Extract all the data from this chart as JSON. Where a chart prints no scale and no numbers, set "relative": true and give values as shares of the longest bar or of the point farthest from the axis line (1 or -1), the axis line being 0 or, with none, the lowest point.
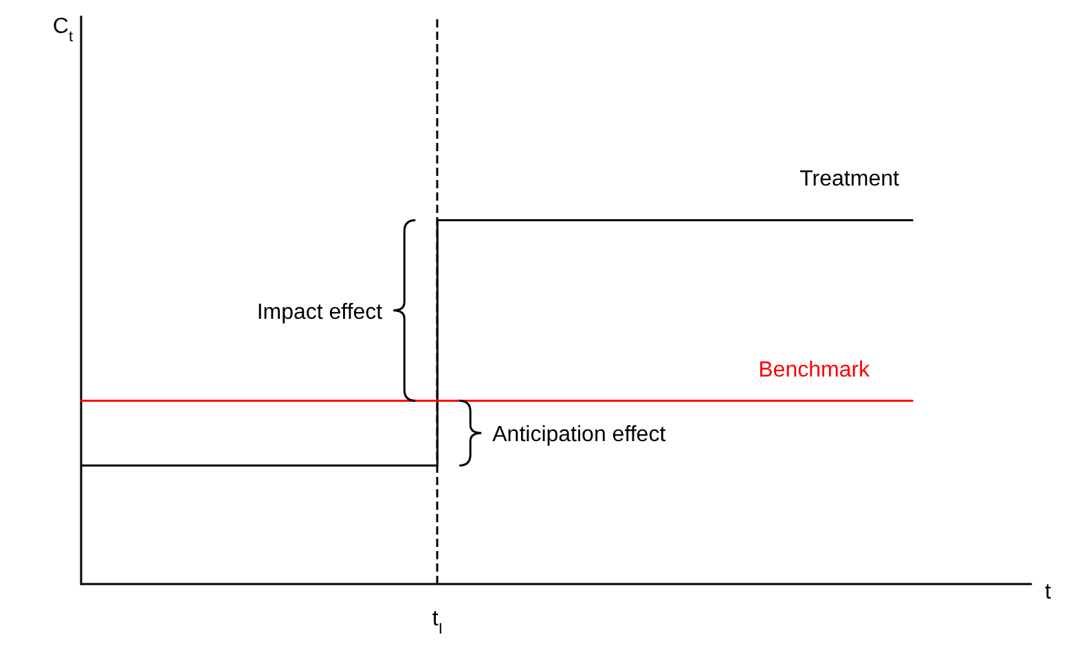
{
  "chart_data": {
    "type": "line",
    "relative": true,
    "xlabel": "t",
    "categories": [
      null,
      null,
      null,
      null,
      null,
      null,
      null,
      null,
      null
    ],
    "tick_labels": false,
    "grid": false,
    "legend": false,
    "marker": "none",
    "line_style": "solid",
    "series": [
      {
        "name": "Treatment",
        "type": "step",
        "color": "#000000",
        "values": [
          0.326,
          0.326,
          0.326,
          0.326,
          1,
          1,
          1,
          1,
          null
        ]
      },
      {
        "name": "Benchmark",
        "color": "#ff0000",
        "values": [
          0.504,
          0.504,
          0.504,
          0.504,
          0.504,
          0.504,
          0.504,
          0.504,
          null
        ]
      }
    ],
    "ref_lines": [
      {
        "axis": "x",
        "label": "t$_{I}$",
        "color": "#000000",
        "line_style": "dashed"
      }
    ],
    "annotations": [
      "Impact effect",
      "Anticipation effect",
      "C$_{t}$"
    ]
  }
}
